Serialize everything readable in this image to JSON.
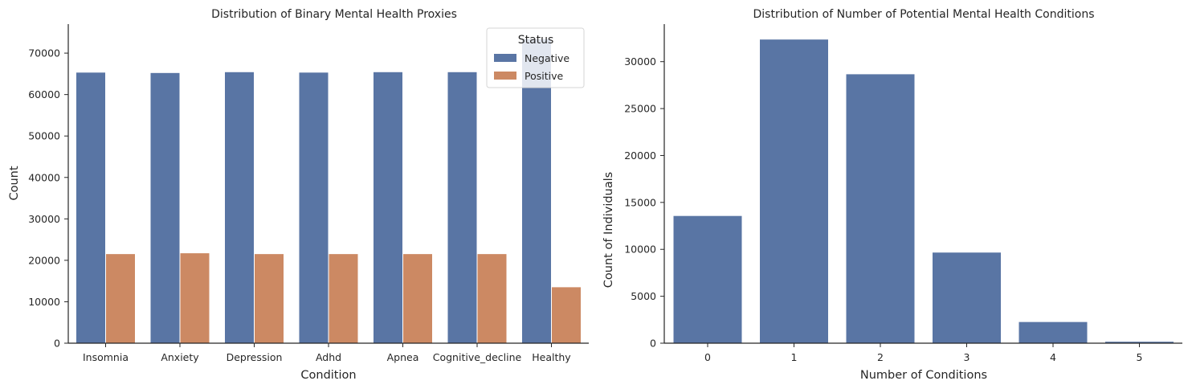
{
  "colors": {
    "negative": "#5975a4",
    "positive": "#cc8963"
  },
  "chart_data": [
    {
      "type": "bar",
      "title": "Distribution of Binary Mental Health Proxies",
      "xlabel": "Condition",
      "ylabel": "Count",
      "categories": [
        "Insomnia",
        "Anxiety",
        "Depression",
        "Adhd",
        "Apnea",
        "Cognitive_decline",
        "Healthy"
      ],
      "series": [
        {
          "name": "Negative",
          "values": [
            65400,
            65300,
            65500,
            65400,
            65500,
            65500,
            73500
          ]
        },
        {
          "name": "Positive",
          "values": [
            21600,
            21800,
            21600,
            21600,
            21600,
            21600,
            13600
          ]
        }
      ],
      "ylim": [
        0,
        77000
      ],
      "yticks": [
        0,
        10000,
        20000,
        30000,
        40000,
        50000,
        60000,
        70000
      ],
      "legend": {
        "title": "Status",
        "placement": "top-right"
      },
      "grid": false
    },
    {
      "type": "bar",
      "title": "Distribution of Number of Potential Mental Health Conditions",
      "xlabel": "Number of Conditions",
      "ylabel": "Count of Individuals",
      "categories": [
        "0",
        "1",
        "2",
        "3",
        "4",
        "5"
      ],
      "values": [
        13600,
        32400,
        28700,
        9700,
        2300,
        200
      ],
      "ylim": [
        0,
        34000
      ],
      "yticks": [
        0,
        5000,
        10000,
        15000,
        20000,
        25000,
        30000
      ],
      "grid": false
    }
  ]
}
